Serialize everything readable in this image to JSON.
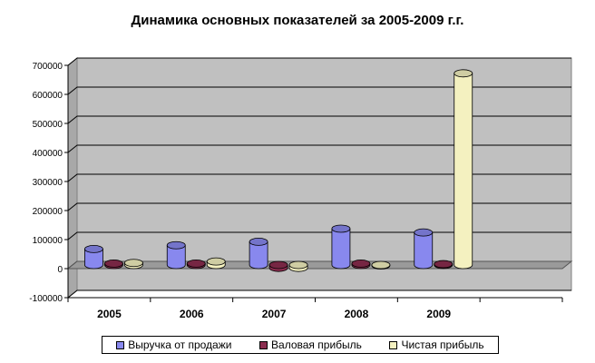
{
  "chart_data": {
    "type": "bar",
    "title": "Динамика основных показателей за 2005-2009 г.г.",
    "categories": [
      "2005",
      "2006",
      "2007",
      "2008",
      "2009"
    ],
    "series": [
      {
        "name": "Выручка от продажи",
        "color": "#8888ee",
        "values": [
          55000,
          68000,
          80000,
          125000,
          112000
        ]
      },
      {
        "name": "Валовая прибыль",
        "color": "#8b2d4f",
        "values": [
          5000,
          5000,
          -10000,
          5000,
          3000
        ]
      },
      {
        "name": "Чистая прибыль",
        "color": "#f4f1c0",
        "values": [
          7000,
          12000,
          -10000,
          -2000,
          660000
        ]
      }
    ],
    "yticks": [
      -100000,
      0,
      100000,
      200000,
      300000,
      400000,
      500000,
      600000,
      700000
    ],
    "ytick_labels": [
      "-100000",
      "0",
      "100000",
      "200000",
      "300000",
      "400000",
      "500000",
      "600000",
      "700000"
    ],
    "ylim": [
      -100000,
      700000
    ],
    "grid": true,
    "legend_position": "bottom",
    "xlabel": "",
    "ylabel": ""
  }
}
